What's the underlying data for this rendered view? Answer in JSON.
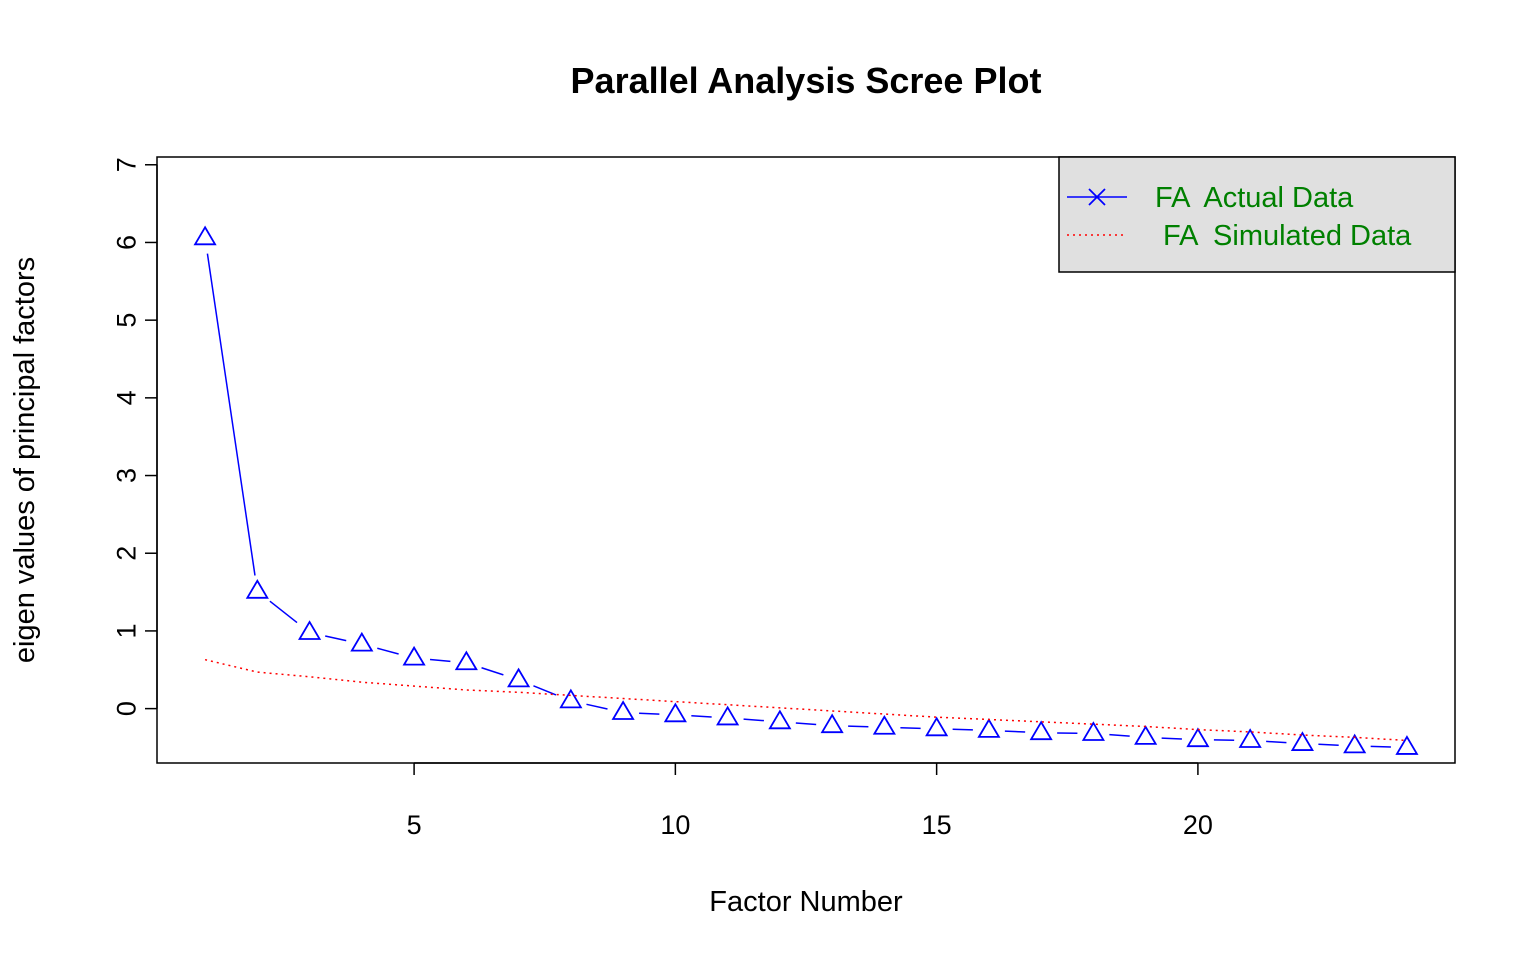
{
  "chart_data": {
    "type": "line",
    "title": "Parallel Analysis Scree Plot",
    "xlabel": "Factor Number",
    "ylabel": "eigen values of principal factors",
    "xlim": [
      0.08,
      24.92
    ],
    "ylim": [
      -0.7,
      7.1
    ],
    "x_ticks": [
      5,
      10,
      15,
      20
    ],
    "y_ticks": [
      0,
      1,
      2,
      3,
      4,
      5,
      6,
      7
    ],
    "grid": false,
    "legend_position": "top-right",
    "x": [
      1,
      2,
      3,
      4,
      5,
      6,
      7,
      8,
      9,
      10,
      11,
      12,
      13,
      14,
      15,
      16,
      17,
      18,
      19,
      20,
      21,
      22,
      23,
      24
    ],
    "series": [
      {
        "name": "FA  Actual Data",
        "color": "#0000ff",
        "line_style": "solid",
        "marker": "triangle",
        "values": [
          6.06,
          1.51,
          0.98,
          0.83,
          0.65,
          0.59,
          0.37,
          0.1,
          -0.05,
          -0.08,
          -0.12,
          -0.17,
          -0.22,
          -0.24,
          -0.26,
          -0.28,
          -0.31,
          -0.32,
          -0.37,
          -0.4,
          -0.41,
          -0.45,
          -0.48,
          -0.5
        ]
      },
      {
        "name": " FA  Simulated Data",
        "color": "#ff0000",
        "line_style": "dotted",
        "marker": "none",
        "values": [
          0.63,
          0.47,
          0.41,
          0.34,
          0.29,
          0.24,
          0.21,
          0.17,
          0.13,
          0.09,
          0.05,
          0.01,
          -0.03,
          -0.07,
          -0.11,
          -0.14,
          -0.17,
          -0.2,
          -0.23,
          -0.27,
          -0.3,
          -0.34,
          -0.37,
          -0.41
        ]
      }
    ],
    "legend_bg": "#e0e0e0",
    "legend_text_color": "#008000"
  }
}
